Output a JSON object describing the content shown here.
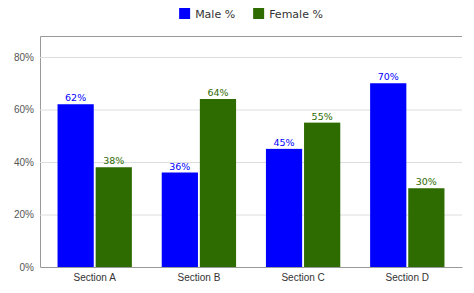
{
  "chart_data": {
    "type": "bar",
    "categories": [
      "Section A",
      "Section B",
      "Section C",
      "Section D"
    ],
    "series": [
      {
        "name": "Male %",
        "color": "#0000FF",
        "values": [
          0.62,
          0.36,
          0.45,
          0.7
        ],
        "value_labels": [
          "62%",
          "36%",
          "45%",
          "70%"
        ]
      },
      {
        "name": "Female %",
        "color": "#2E6B00",
        "values": [
          0.38,
          0.64,
          0.55,
          0.3
        ],
        "value_labels": [
          "38%",
          "64%",
          "55%",
          "30%"
        ]
      }
    ],
    "ylim": [
      0,
      0.88
    ],
    "yticks": [
      {
        "value": 0,
        "label": "0%"
      },
      {
        "value": 0.2,
        "label": "20%"
      },
      {
        "value": 0.4,
        "label": "40%"
      },
      {
        "value": 0.6,
        "label": "60%"
      },
      {
        "value": 0.8,
        "label": "80%"
      }
    ],
    "grid": true,
    "legend": "top",
    "data_labels": true
  }
}
